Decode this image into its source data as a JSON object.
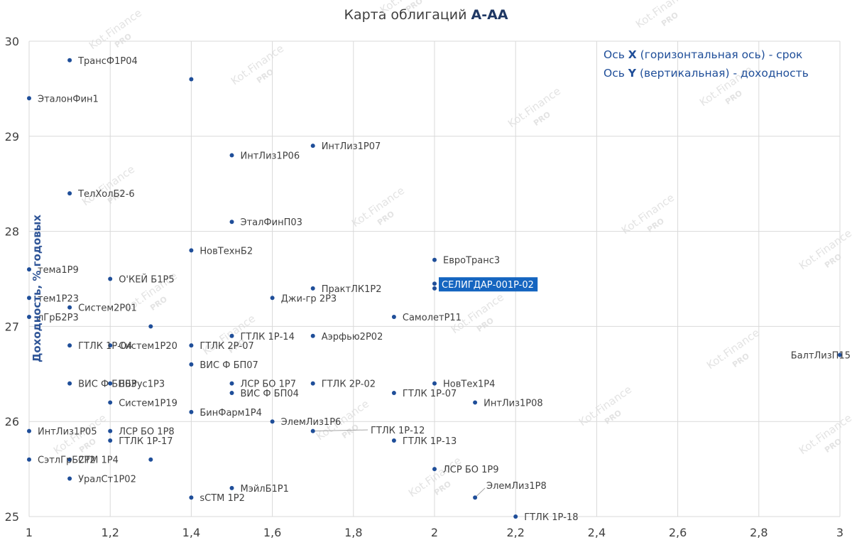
{
  "chart_title": {
    "prefix": "Карта облигаций ",
    "emphasis": "А-АА"
  },
  "notes": {
    "x_axis": "Ось X (горизонтальная ось) - срок",
    "y_axis": "Ось Y (вертикальная) - доходность"
  },
  "colors": {
    "point": "#1F4E99",
    "grid": "#D9D9D9",
    "label": "#404040",
    "highlight_bg": "#1565C0",
    "highlight_text": "#ffffff",
    "watermark": "#E3E3E3"
  },
  "watermark_text": "Kot.Finance",
  "watermark_badge": "PRO",
  "chart_data": {
    "type": "scatter",
    "title": "Карта облигаций А-АА",
    "xlabel": "",
    "ylabel": "Доходность, % годовых",
    "xlim": [
      1,
      3
    ],
    "ylim": [
      25,
      30
    ],
    "x_ticks": [
      "1",
      "1,2",
      "1,4",
      "1,6",
      "1,8",
      "2",
      "2,2",
      "2,4",
      "2,6",
      "2,8",
      "3"
    ],
    "y_ticks": [
      "25",
      "26",
      "27",
      "28",
      "29",
      "30"
    ],
    "grid": true,
    "highlighted": "СЕЛИГДАР-001P-02",
    "points": [
      {
        "label": "ТрансФ1Р04",
        "x": 1.1,
        "y": 29.8
      },
      {
        "label": "",
        "x": 1.4,
        "y": 29.6
      },
      {
        "label": "ЭталонФин1",
        "x": 1.0,
        "y": 29.4
      },
      {
        "label": "ИнтЛиз1Р07",
        "x": 1.7,
        "y": 28.9
      },
      {
        "label": "ИнтЛиз1Р06",
        "x": 1.5,
        "y": 28.8
      },
      {
        "label": "ТелХолБ2-6",
        "x": 1.1,
        "y": 28.4
      },
      {
        "label": "ЭталФинП03",
        "x": 1.5,
        "y": 28.1
      },
      {
        "label": "НовТехнБ2",
        "x": 1.4,
        "y": 27.8
      },
      {
        "label": "ЕвроТранс3",
        "x": 2.0,
        "y": 27.7
      },
      {
        "label": "тема1Р9",
        "x": 1.0,
        "y": 27.6
      },
      {
        "label": "О'КЕЙ Б1Р5",
        "x": 1.2,
        "y": 27.5
      },
      {
        "label": "СЕЛИГДАР-001P-02",
        "x": 2.0,
        "y": 27.45
      },
      {
        "label": "",
        "x": 2.0,
        "y": 27.4
      },
      {
        "label": "ПрактЛК1Р2",
        "x": 1.7,
        "y": 27.4
      },
      {
        "label": "тем1Р23",
        "x": 1.0,
        "y": 27.3
      },
      {
        "label": "Джи-гр 2Р3",
        "x": 1.6,
        "y": 27.3
      },
      {
        "label": "Систем2Р01",
        "x": 1.1,
        "y": 27.2
      },
      {
        "label": "лГрБ2Р3",
        "x": 1.0,
        "y": 27.1
      },
      {
        "label": "СамолетР11",
        "x": 1.9,
        "y": 27.1
      },
      {
        "label": "",
        "x": 1.3,
        "y": 27.0
      },
      {
        "label": "ГТЛК 1Р-14",
        "x": 1.5,
        "y": 26.9
      },
      {
        "label": "Аэрфью2Р02",
        "x": 1.7,
        "y": 26.9
      },
      {
        "label": "ГТЛК 1Р-04",
        "x": 1.1,
        "y": 26.8
      },
      {
        "label": "Систем1Р20",
        "x": 1.2,
        "y": 26.8
      },
      {
        "label": "ГТЛК 2Р-07",
        "x": 1.4,
        "y": 26.8
      },
      {
        "label": "БалтЛизП15",
        "x": 3.0,
        "y": 26.7
      },
      {
        "label": "ВИС Ф БП07",
        "x": 1.4,
        "y": 26.6
      },
      {
        "label": "ВИС Ф БП03",
        "x": 1.1,
        "y": 26.4
      },
      {
        "label": "ВБРус1Р3",
        "x": 1.2,
        "y": 26.4
      },
      {
        "label": "ЛСР БО 1Р7",
        "x": 1.5,
        "y": 26.4
      },
      {
        "label": "ГТЛК 2Р-02",
        "x": 1.7,
        "y": 26.4
      },
      {
        "label": "НовТех1Р4",
        "x": 2.0,
        "y": 26.4
      },
      {
        "label": "ВИС Ф БП04",
        "x": 1.5,
        "y": 26.3
      },
      {
        "label": "ГТЛК 1Р-07",
        "x": 1.9,
        "y": 26.3
      },
      {
        "label": "Систем1Р19",
        "x": 1.2,
        "y": 26.2
      },
      {
        "label": "ИнтЛиз1Р08",
        "x": 2.1,
        "y": 26.2
      },
      {
        "label": "БинФарм1Р4",
        "x": 1.4,
        "y": 26.1
      },
      {
        "label": "ЭлемЛиз1Р6",
        "x": 1.6,
        "y": 26.0
      },
      {
        "label": "ИнтЛиз1Р05",
        "x": 1.0,
        "y": 25.9
      },
      {
        "label": "ЛСР БО 1Р8",
        "x": 1.2,
        "y": 25.9
      },
      {
        "label": "ГТЛК 1Р-12",
        "x": 1.7,
        "y": 25.9
      },
      {
        "label": "ГТЛК 1Р-17",
        "x": 1.2,
        "y": 25.8
      },
      {
        "label": "ГТЛК 1Р-13",
        "x": 1.9,
        "y": 25.8
      },
      {
        "label": "СэтлГрБ2Р2",
        "x": 1.0,
        "y": 25.6
      },
      {
        "label": "СТМ 1Р4",
        "x": 1.1,
        "y": 25.6
      },
      {
        "label": "",
        "x": 1.3,
        "y": 25.6
      },
      {
        "label": "ЛСР БО 1Р9",
        "x": 2.0,
        "y": 25.5
      },
      {
        "label": "УралСт1Р02",
        "x": 1.1,
        "y": 25.4
      },
      {
        "label": "МэйлБ1Р1",
        "x": 1.5,
        "y": 25.3
      },
      {
        "label": "ЭлемЛиз1Р8",
        "x": 2.1,
        "y": 25.2
      },
      {
        "label": "sСТМ 1Р2",
        "x": 1.4,
        "y": 25.2
      },
      {
        "label": "ГТЛК 1Р-18",
        "x": 2.2,
        "y": 25.0
      }
    ]
  }
}
